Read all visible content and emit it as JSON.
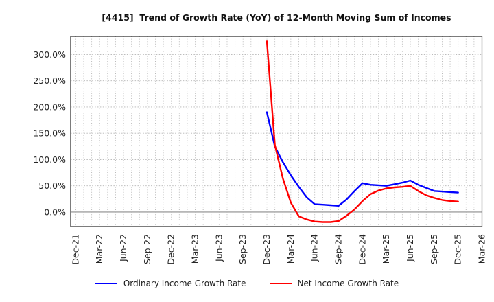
{
  "figure": {
    "title": "[4415]  Trend of Growth Rate (YoY) of 12-Month Moving Sum of Incomes",
    "background": "#ffffff"
  },
  "legend": {
    "position": "bottom-center",
    "items": [
      {
        "label": "Ordinary Income Growth Rate",
        "color": "#0000ff"
      },
      {
        "label": "Net Income Growth Rate",
        "color": "#ff0000"
      }
    ]
  },
  "chart_data": {
    "type": "line",
    "title": "[4415]  Trend of Growth Rate (YoY) of 12-Month Moving Sum of Incomes",
    "x_tick_labels": [
      "Dec-21",
      "Mar-22",
      "Jun-22",
      "Sep-22",
      "Dec-22",
      "Mar-23",
      "Jun-23",
      "Sep-23",
      "Dec-23",
      "Mar-24",
      "Jun-24",
      "Sep-24",
      "Dec-24",
      "Mar-25",
      "Jun-25",
      "Sep-25",
      "Dec-25",
      "Mar-26"
    ],
    "x_month_count": 51,
    "x_label_every_months": 3,
    "y_ticks": [
      0,
      50,
      100,
      150,
      200,
      250,
      300
    ],
    "y_tick_labels": [
      "0.0%",
      "50.0%",
      "100.0%",
      "150.0%",
      "200.0%",
      "250.0%",
      "300.0%"
    ],
    "ylim": [
      -27.5,
      334.5
    ],
    "grid": {
      "shown": true,
      "color": "#b3b3b3",
      "zero_line_color": "#8c8c8c"
    },
    "axis_color": "#262626",
    "tick_label_color": "#262626",
    "series": [
      {
        "name": "Ordinary Income Growth Rate",
        "color": "#0000ff",
        "start_month": "Dec-23",
        "start_month_index": 24,
        "values_pct": [
          190,
          125,
          95,
          70,
          48,
          28,
          15,
          14,
          13,
          12,
          24,
          40,
          55,
          52,
          51,
          50,
          53,
          56,
          60,
          52,
          46,
          40,
          39,
          38,
          37
        ]
      },
      {
        "name": "Net Income Growth Rate",
        "color": "#ff0000",
        "start_month": "Dec-23",
        "start_month_index": 24,
        "values_pct": [
          325,
          128,
          64,
          18,
          -8,
          -14,
          -18,
          -19,
          -19,
          -17,
          -7,
          5,
          21,
          34,
          41,
          45,
          47,
          48,
          50,
          40,
          32,
          27,
          23,
          21,
          20
        ]
      }
    ]
  }
}
